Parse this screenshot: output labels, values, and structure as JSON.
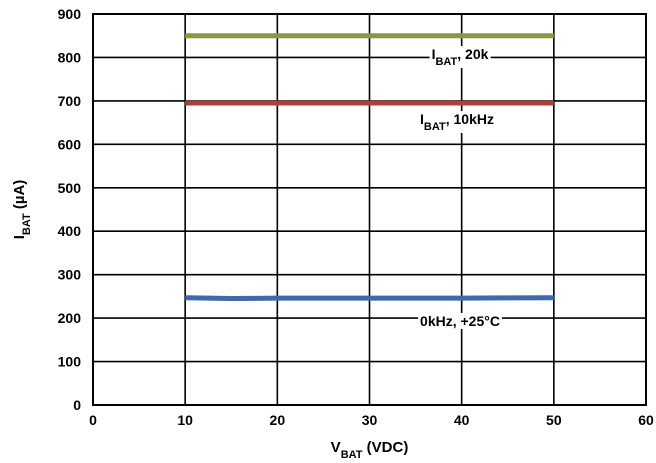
{
  "chart_data": {
    "type": "line",
    "xlabel": {
      "main": "V",
      "sub": "BAT",
      "rest": " (VDC)"
    },
    "ylabel": {
      "main": "I",
      "sub": "BAT",
      "rest": " (µA)"
    },
    "xlim": [
      0,
      60
    ],
    "ylim": [
      0,
      900
    ],
    "x_ticks": [
      "0",
      "10",
      "20",
      "30",
      "40",
      "50",
      "60"
    ],
    "y_ticks": [
      "0",
      "100",
      "200",
      "300",
      "400",
      "500",
      "600",
      "700",
      "800",
      "900"
    ],
    "grid": true,
    "series": [
      {
        "color": "#8A9A3B",
        "x": [
          10,
          50
        ],
        "y": [
          850,
          850
        ],
        "label": {
          "main": "I",
          "sub": "BAT",
          "rest": ", 20k"
        }
      },
      {
        "color": "#A8423F",
        "x": [
          10,
          50
        ],
        "y": [
          695,
          695
        ],
        "label": {
          "main": "I",
          "sub": "BAT",
          "rest": ", 10kHz"
        }
      },
      {
        "color": "#3F69A8",
        "x": [
          10,
          15,
          20,
          30,
          40,
          50
        ],
        "y": [
          247,
          245,
          246,
          246,
          246,
          247
        ],
        "label": {
          "main": "",
          "sub": "",
          "rest": "0kHz, +25°C"
        }
      }
    ]
  }
}
